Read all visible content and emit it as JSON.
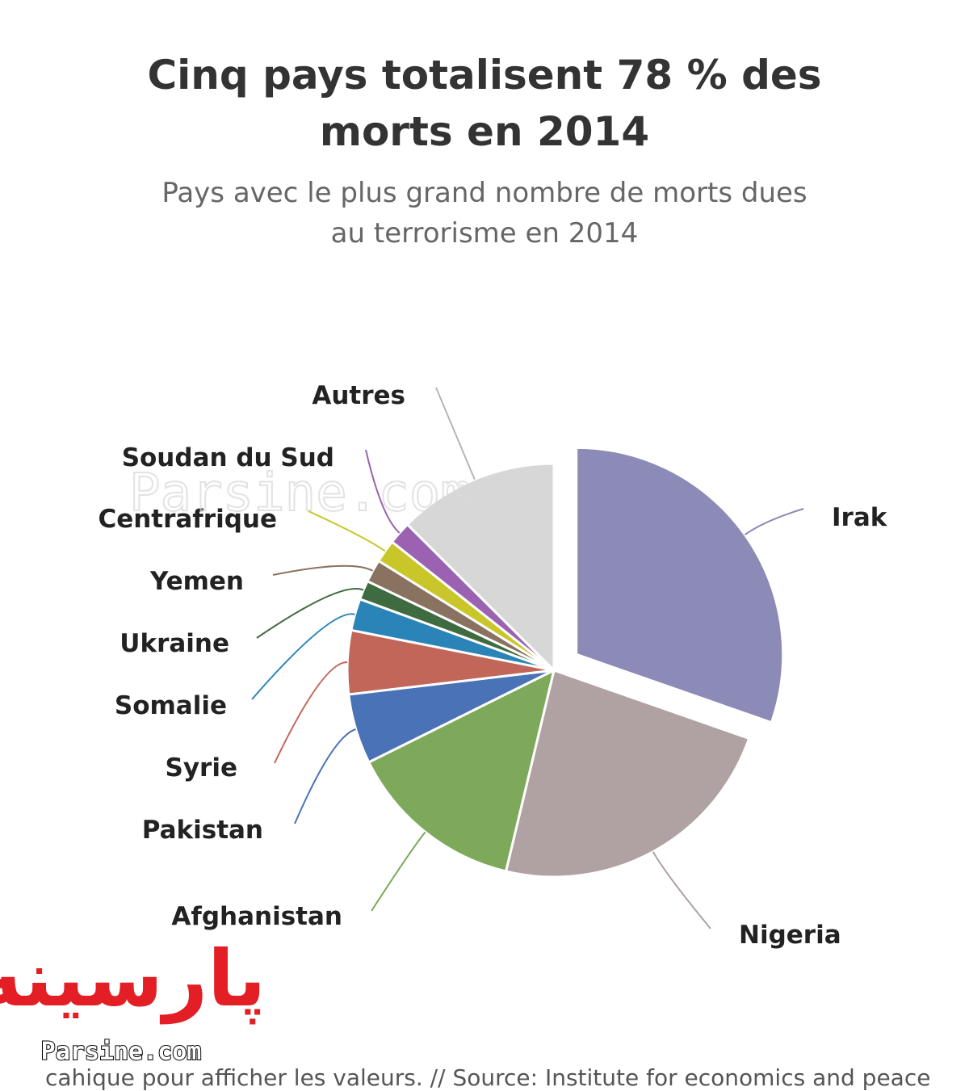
{
  "header": {
    "title_line1": "Cinq pays totalisent 78 % des",
    "title_line2": "morts en 2014",
    "subtitle_line1": "Pays avec le plus grand nombre de morts dues",
    "subtitle_line2": "au terrorisme en 2014"
  },
  "chart_data": {
    "type": "pie",
    "title": "Cinq pays totalisent 78 % des morts en 2014",
    "subtitle": "Pays avec le plus grand nombre de morts dues au terrorisme en 2014",
    "legend": "none (labels beside slices)",
    "slices": [
      {
        "label": "Irak",
        "value": 30.5,
        "color": "#8c8ab6",
        "exploded": true
      },
      {
        "label": "Nigeria",
        "value": 23.5,
        "color": "#b0a2a2"
      },
      {
        "label": "Afghanistan",
        "value": 14.0,
        "color": "#7ea85a"
      },
      {
        "label": "Pakistan",
        "value": 5.5,
        "color": "#4a72b6"
      },
      {
        "label": "Syrie",
        "value": 5.0,
        "color": "#c2665a"
      },
      {
        "label": "Somalie",
        "value": 2.5,
        "color": "#2b84b8"
      },
      {
        "label": "Ukraine",
        "value": 1.5,
        "color": "#3f6b40"
      },
      {
        "label": "Yemen",
        "value": 1.8,
        "color": "#8a7260"
      },
      {
        "label": "Centrafrique",
        "value": 1.8,
        "color": "#c9c62a"
      },
      {
        "label": "Soudan du Sud",
        "value": 1.8,
        "color": "#9a62b0"
      },
      {
        "label": "Autres",
        "value": 12.6,
        "color": "#d7d7d7"
      }
    ]
  },
  "watermark": {
    "overlay_text": "Parsine.com",
    "logo_arabic": "پارسینه",
    "logo_latin": "Parsine.com"
  },
  "footer": {
    "text": "cahique pour afficher les valeurs. // Source: Institute for economics and peace"
  }
}
